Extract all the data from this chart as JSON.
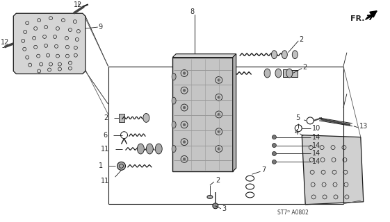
{
  "bg_color": "#ffffff",
  "diagram_code": "ST7ᴰ A0802",
  "fr_label": "FR.",
  "fig_width": 5.61,
  "fig_height": 3.2,
  "dpi": 100,
  "line_color": "#1a1a1a",
  "part_color": "#2a2a2a",
  "plate_face": "#e0e0e0",
  "plate_edge": "#1a1a1a",
  "body_face": "#c8c8c8",
  "body_edge": "#1a1a1a"
}
